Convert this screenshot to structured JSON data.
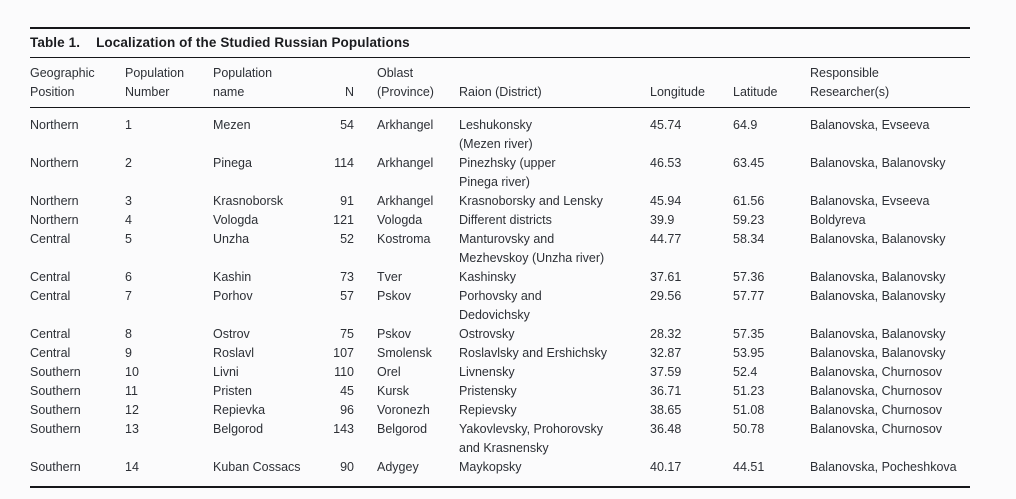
{
  "colors": {
    "background": "#fbfbfc",
    "text": "#2d3036",
    "rule": "#16171a"
  },
  "table": {
    "title_label": "Table 1.",
    "title": "Localization of the Studied Russian Populations",
    "columns": [
      {
        "key": "geo",
        "label": "Geographic\nPosition"
      },
      {
        "key": "num",
        "label": "Population\nNumber"
      },
      {
        "key": "name",
        "label": "Population\nname"
      },
      {
        "key": "n",
        "label": "N"
      },
      {
        "key": "oblast",
        "label": "Oblast\n(Province)"
      },
      {
        "key": "raion",
        "label": "Raion (District)"
      },
      {
        "key": "longitude",
        "label": "Longitude"
      },
      {
        "key": "latitude",
        "label": "Latitude"
      },
      {
        "key": "researcher",
        "label": "Responsible\nResearcher(s)"
      }
    ],
    "field_order": [
      "geo",
      "num",
      "name",
      "n",
      "oblast",
      "raion",
      "longitude",
      "latitude",
      "researcher"
    ],
    "rows": [
      {
        "geo": "Northern",
        "num": "1",
        "name": "Mezen",
        "n": "54",
        "oblast": "Arkhangel",
        "raion": "Leshukonsky\n(Mezen river)",
        "longitude": "45.74",
        "latitude": "64.9",
        "researcher": "Balanovska, Evseeva"
      },
      {
        "geo": "Northern",
        "num": "2",
        "name": "Pinega",
        "n": "114",
        "oblast": "Arkhangel",
        "raion": "Pinezhsky (upper\nPinega river)",
        "longitude": "46.53",
        "latitude": "63.45",
        "researcher": "Balanovska, Balanovsky"
      },
      {
        "geo": "Northern",
        "num": "3",
        "name": "Krasnoborsk",
        "n": "91",
        "oblast": "Arkhangel",
        "raion": "Krasnoborsky and Lensky",
        "longitude": "45.94",
        "latitude": "61.56",
        "researcher": "Balanovska, Evseeva"
      },
      {
        "geo": "Northern",
        "num": "4",
        "name": "Vologda",
        "n": "121",
        "oblast": "Vologda",
        "raion": "Different districts",
        "longitude": "39.9",
        "latitude": "59.23",
        "researcher": "Boldyreva"
      },
      {
        "geo": "Central",
        "num": "5",
        "name": "Unzha",
        "n": "52",
        "oblast": "Kostroma",
        "raion": "Manturovsky and\nMezhevskoy (Unzha river)",
        "longitude": "44.77",
        "latitude": "58.34",
        "researcher": "Balanovska, Balanovsky"
      },
      {
        "geo": "Central",
        "num": "6",
        "name": "Kashin",
        "n": "73",
        "oblast": "Tver",
        "raion": "Kashinsky",
        "longitude": "37.61",
        "latitude": "57.36",
        "researcher": "Balanovska, Balanovsky"
      },
      {
        "geo": "Central",
        "num": "7",
        "name": "Porhov",
        "n": "57",
        "oblast": "Pskov",
        "raion": "Porhovsky and\nDedovichsky",
        "longitude": "29.56",
        "latitude": "57.77",
        "researcher": "Balanovska, Balanovsky"
      },
      {
        "geo": "Central",
        "num": "8",
        "name": "Ostrov",
        "n": "75",
        "oblast": "Pskov",
        "raion": "Ostrovsky",
        "longitude": "28.32",
        "latitude": "57.35",
        "researcher": "Balanovska, Balanovsky"
      },
      {
        "geo": "Central",
        "num": "9",
        "name": "Roslavl",
        "n": "107",
        "oblast": "Smolensk",
        "raion": "Roslavlsky and Ershichsky",
        "longitude": "32.87",
        "latitude": "53.95",
        "researcher": "Balanovska, Balanovsky"
      },
      {
        "geo": "Southern",
        "num": "10",
        "name": "Livni",
        "n": "110",
        "oblast": "Orel",
        "raion": "Livnensky",
        "longitude": "37.59",
        "latitude": "52.4",
        "researcher": "Balanovska, Churnosov"
      },
      {
        "geo": "Southern",
        "num": "11",
        "name": "Pristen",
        "n": "45",
        "oblast": "Kursk",
        "raion": "Pristensky",
        "longitude": "36.71",
        "latitude": "51.23",
        "researcher": "Balanovska, Churnosov"
      },
      {
        "geo": "Southern",
        "num": "12",
        "name": "Repievka",
        "n": "96",
        "oblast": "Voronezh",
        "raion": "Repievsky",
        "longitude": "38.65",
        "latitude": "51.08",
        "researcher": "Balanovska, Churnosov"
      },
      {
        "geo": "Southern",
        "num": "13",
        "name": "Belgorod",
        "n": "143",
        "oblast": "Belgorod",
        "raion": "Yakovlevsky, Prohorovsky\nand Krasnensky",
        "longitude": "36.48",
        "latitude": "50.78",
        "researcher": "Balanovska, Churnosov"
      },
      {
        "geo": "Southern",
        "num": "14",
        "name": "Kuban Cossacs",
        "n": "90",
        "oblast": "Adygey",
        "raion": "Maykopsky",
        "longitude": "40.17",
        "latitude": "44.51",
        "researcher": "Balanovska, Pocheshkova"
      }
    ]
  }
}
